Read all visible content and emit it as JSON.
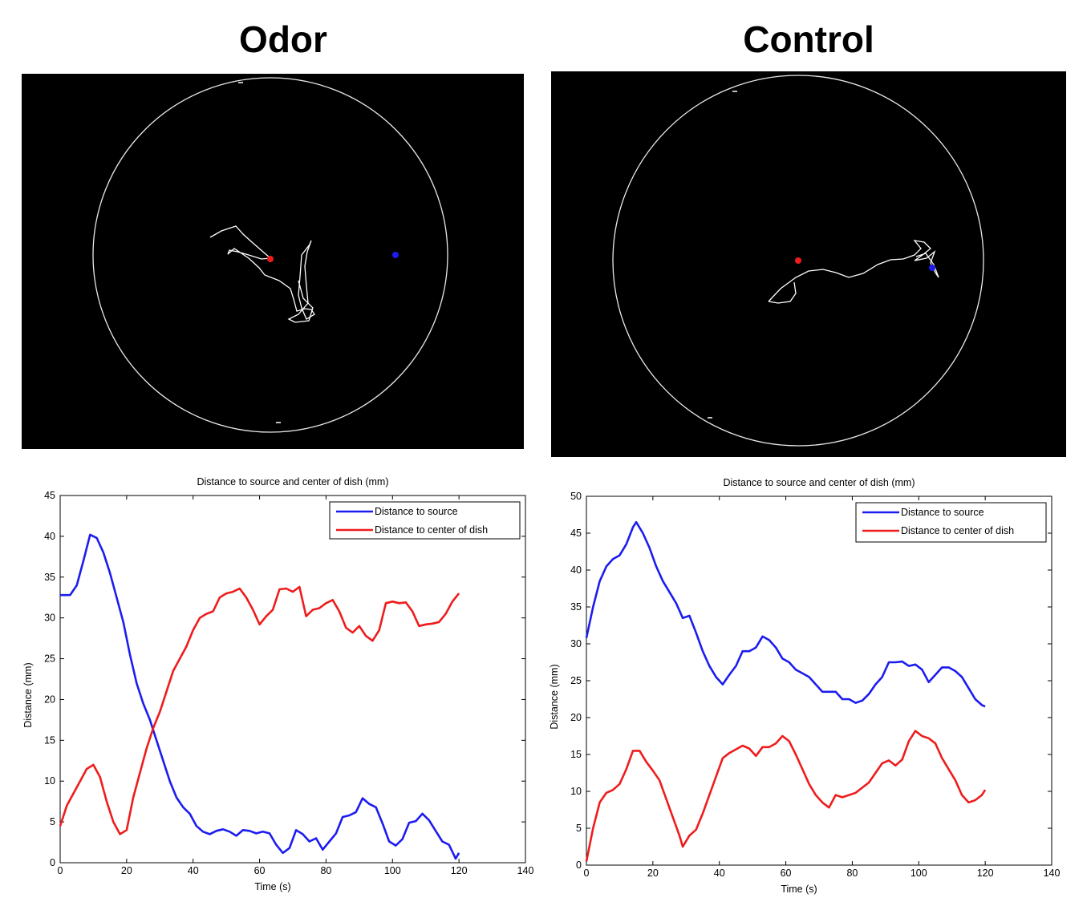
{
  "panels": {
    "left_title": "Odor",
    "right_title": "Control"
  },
  "colors": {
    "source": "#1c1cf0",
    "center": "#ee1c1c",
    "track": "#ffffff",
    "background": "#000000"
  },
  "chart_data": [
    {
      "type": "line",
      "title": "Distance to source and center of dish (mm)",
      "xlabel": "Time (s)",
      "ylabel": "Distance (mm)",
      "xlim": [
        0,
        140
      ],
      "ylim": [
        0,
        45
      ],
      "xticks": [
        0,
        20,
        40,
        60,
        80,
        100,
        120,
        140
      ],
      "yticks": [
        0,
        5,
        10,
        15,
        20,
        25,
        30,
        35,
        40,
        45
      ],
      "legend": "top-right",
      "grid": false,
      "series": [
        {
          "name": "Distance to source",
          "color": "#1c1cf0",
          "x": [
            0,
            3,
            5,
            7,
            9,
            11,
            13,
            15,
            17,
            19,
            21,
            23,
            25,
            27,
            29,
            31,
            33,
            35,
            37,
            39,
            41,
            43,
            45,
            47,
            49,
            51,
            53,
            55,
            57,
            59,
            61,
            63,
            65,
            67,
            69,
            71,
            73,
            75,
            77,
            79,
            81,
            83,
            85,
            87,
            89,
            91,
            93,
            95,
            97,
            99,
            101,
            103,
            105,
            107,
            109,
            111,
            113,
            115,
            117,
            119,
            120
          ],
          "y": [
            32.8,
            32.8,
            34,
            37,
            40.2,
            39.8,
            38,
            35.5,
            32.5,
            29.5,
            25.5,
            22,
            19.5,
            17.5,
            15,
            12.5,
            10,
            8,
            6.8,
            6,
            4.5,
            3.8,
            3.5,
            3.9,
            4.1,
            3.8,
            3.3,
            4.0,
            3.9,
            3.6,
            3.8,
            3.6,
            2.2,
            1.2,
            1.8,
            4.0,
            3.5,
            2.6,
            3.0,
            1.6,
            2.6,
            3.6,
            5.6,
            5.8,
            6.2,
            7.9,
            7.2,
            6.8,
            4.8,
            2.6,
            2.1,
            2.9,
            4.9,
            5.1,
            6.0,
            5.2,
            3.9,
            2.6,
            2.2,
            0.5,
            1.2
          ]
        },
        {
          "name": "Distance to center of dish",
          "color": "#ee1c1c",
          "x": [
            0,
            2,
            4,
            6,
            8,
            10,
            12,
            14,
            16,
            18,
            20,
            22,
            24,
            26,
            28,
            30,
            32,
            34,
            36,
            38,
            40,
            42,
            44,
            46,
            48,
            50,
            52,
            54,
            56,
            58,
            60,
            62,
            64,
            66,
            68,
            70,
            72,
            74,
            76,
            78,
            80,
            82,
            84,
            86,
            88,
            90,
            92,
            94,
            96,
            98,
            100,
            102,
            104,
            106,
            108,
            110,
            112,
            114,
            116,
            118,
            120
          ],
          "y": [
            4.5,
            7,
            8.5,
            10,
            11.5,
            12,
            10.5,
            7.5,
            5,
            3.5,
            4,
            8,
            11,
            14,
            16.5,
            18.5,
            21,
            23.5,
            25,
            26.5,
            28.5,
            30,
            30.5,
            30.8,
            32.5,
            33,
            33.2,
            33.6,
            32.5,
            31,
            29.2,
            30.2,
            31,
            33.5,
            33.6,
            33.2,
            33.8,
            30.2,
            31,
            31.2,
            31.8,
            32.2,
            30.8,
            28.8,
            28.2,
            29,
            27.8,
            27.2,
            28.5,
            31.8,
            32,
            31.8,
            31.9,
            30.8,
            29,
            29.2,
            29.3,
            29.5,
            30.5,
            32,
            33
          ]
        }
      ]
    },
    {
      "type": "line",
      "title": "Distance to source and center of dish (mm)",
      "xlabel": "Time (s)",
      "ylabel": "Distance (mm)",
      "xlim": [
        0,
        140
      ],
      "ylim": [
        0,
        50
      ],
      "xticks": [
        0,
        20,
        40,
        60,
        80,
        100,
        120,
        140
      ],
      "yticks": [
        0,
        5,
        10,
        15,
        20,
        25,
        30,
        35,
        40,
        45,
        50
      ],
      "legend": "top-right",
      "grid": false,
      "series": [
        {
          "name": "Distance to source",
          "color": "#1c1cf0",
          "x": [
            0,
            2,
            4,
            6,
            8,
            10,
            12,
            14,
            15,
            17,
            19,
            21,
            23,
            25,
            27,
            29,
            31,
            33,
            35,
            37,
            39,
            41,
            43,
            45,
            47,
            49,
            51,
            53,
            55,
            57,
            59,
            61,
            63,
            65,
            67,
            69,
            71,
            73,
            75,
            77,
            79,
            81,
            83,
            85,
            87,
            89,
            91,
            93,
            95,
            97,
            99,
            101,
            103,
            105,
            107,
            109,
            111,
            113,
            115,
            117,
            119,
            120
          ],
          "y": [
            30.8,
            35,
            38.5,
            40.5,
            41.5,
            42,
            43.5,
            45.8,
            46.5,
            45,
            43,
            40.5,
            38.5,
            37,
            35.5,
            33.5,
            33.8,
            31.5,
            29,
            27,
            25.5,
            24.5,
            25.8,
            27,
            29,
            29,
            29.5,
            31,
            30.5,
            29.5,
            28,
            27.5,
            26.5,
            26,
            25.5,
            24.5,
            23.5,
            23.5,
            23.5,
            22.5,
            22.5,
            22,
            22.3,
            23.2,
            24.5,
            25.5,
            27.5,
            27.5,
            27.6,
            27,
            27.2,
            26.5,
            24.8,
            25.8,
            26.8,
            26.8,
            26.3,
            25.5,
            24,
            22.5,
            21.7,
            21.5
          ]
        },
        {
          "name": "Distance to center of dish",
          "color": "#ee1c1c",
          "x": [
            0,
            2,
            4,
            6,
            8,
            10,
            12,
            14,
            16,
            18,
            20,
            22,
            24,
            26,
            28,
            29,
            31,
            33,
            35,
            37,
            39,
            41,
            43,
            45,
            47,
            49,
            51,
            53,
            55,
            57,
            59,
            61,
            63,
            65,
            67,
            69,
            71,
            73,
            75,
            77,
            79,
            81,
            83,
            85,
            87,
            89,
            91,
            93,
            95,
            97,
            99,
            101,
            103,
            105,
            107,
            109,
            111,
            113,
            115,
            117,
            119,
            120
          ],
          "y": [
            0.5,
            5,
            8.5,
            9.8,
            10.2,
            11,
            13,
            15.5,
            15.5,
            14,
            12.8,
            11.5,
            9,
            6.5,
            4,
            2.5,
            4,
            4.8,
            7,
            9.5,
            12,
            14.5,
            15.2,
            15.7,
            16.2,
            15.8,
            14.8,
            16,
            16,
            16.5,
            17.5,
            16.8,
            15,
            13,
            11,
            9.5,
            8.5,
            7.8,
            9.5,
            9.2,
            9.5,
            9.8,
            10.5,
            11.2,
            12.5,
            13.8,
            14.2,
            13.5,
            14.3,
            16.8,
            18.2,
            17.5,
            17.2,
            16.5,
            14.5,
            13,
            11.5,
            9.5,
            8.5,
            8.8,
            9.5,
            10.2
          ]
        }
      ]
    }
  ],
  "tracks": [
    {
      "dish": {
        "cx": 337,
        "cy": 318,
        "r": 221
      },
      "source_dot": {
        "x": 493,
        "y": 318
      },
      "center_dot": {
        "x": 337,
        "y": 323
      },
      "path": [
        [
          262,
          296
        ],
        [
          276,
          288
        ],
        [
          294,
          282
        ],
        [
          303,
          292
        ],
        [
          314,
          302
        ],
        [
          329,
          315
        ],
        [
          337,
          322
        ],
        [
          326,
          323
        ],
        [
          310,
          318
        ],
        [
          296,
          314
        ],
        [
          286,
          312
        ],
        [
          284,
          317
        ],
        [
          292,
          310
        ],
        [
          310,
          322
        ],
        [
          323,
          334
        ],
        [
          330,
          343
        ],
        [
          348,
          350
        ],
        [
          362,
          360
        ],
        [
          366,
          373
        ],
        [
          370,
          388
        ],
        [
          380,
          385
        ],
        [
          388,
          386
        ],
        [
          392,
          392
        ],
        [
          382,
          398
        ],
        [
          376,
          384
        ],
        [
          372,
          368
        ],
        [
          374,
          345
        ],
        [
          376,
          318
        ],
        [
          386,
          305
        ],
        [
          388,
          300
        ],
        [
          383,
          314
        ],
        [
          380,
          332
        ],
        [
          382,
          357
        ],
        [
          384,
          378
        ],
        [
          372,
          392
        ],
        [
          360,
          398
        ],
        [
          368,
          402
        ],
        [
          385,
          400
        ],
        [
          390,
          384
        ],
        [
          378,
          372
        ],
        [
          372,
          350
        ]
      ],
      "marks": [
        [
          347,
          527
        ],
        [
          300,
          103
        ]
      ]
    },
    {
      "dish": {
        "cx": 995,
        "cy": 325,
        "r": 231
      },
      "source_dot": {
        "x": 1162,
        "y": 334
      },
      "center_dot": {
        "x": 995,
        "y": 325
      },
      "path": [
        [
          958,
          376
        ],
        [
          973,
          360
        ],
        [
          992,
          346
        ],
        [
          1008,
          338
        ],
        [
          1026,
          336
        ],
        [
          1042,
          340
        ],
        [
          1058,
          346
        ],
        [
          1076,
          341
        ],
        [
          1094,
          330
        ],
        [
          1110,
          324
        ],
        [
          1126,
          323
        ],
        [
          1140,
          318
        ],
        [
          1148,
          310
        ],
        [
          1140,
          300
        ],
        [
          1152,
          302
        ],
        [
          1160,
          310
        ],
        [
          1150,
          318
        ],
        [
          1140,
          325
        ],
        [
          1155,
          322
        ],
        [
          1165,
          314
        ],
        [
          1160,
          328
        ],
        [
          1166,
          340
        ],
        [
          1170,
          346
        ],
        [
          1164,
          330
        ],
        [
          1154,
          316
        ],
        [
          1142,
          320
        ]
      ],
      "path2": [
        [
          958,
          376
        ],
        [
          970,
          378
        ],
        [
          985,
          376
        ],
        [
          992,
          366
        ],
        [
          990,
          352
        ]
      ],
      "marks": [
        [
          885,
          521
        ],
        [
          916,
          114
        ]
      ]
    }
  ]
}
